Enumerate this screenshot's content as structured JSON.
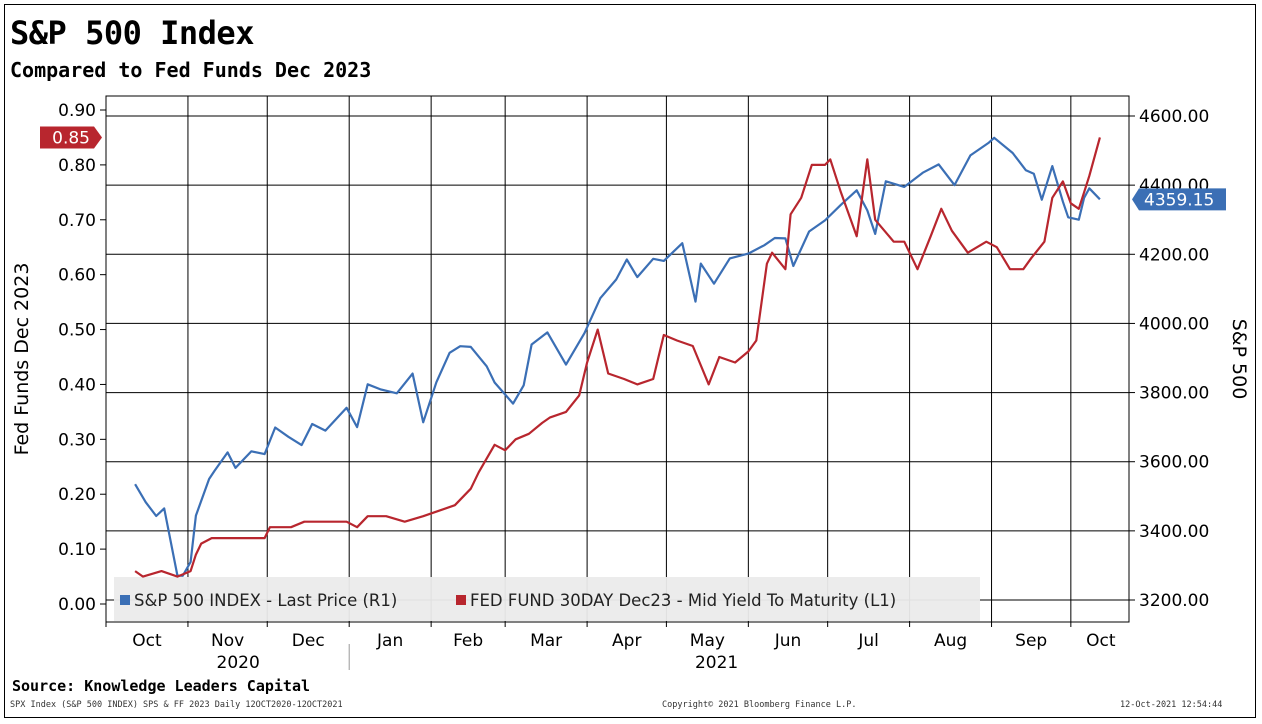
{
  "header": {
    "title": "S&P 500 Index",
    "subtitle": "Compared to Fed Funds Dec 2023"
  },
  "source": "Source: Knowledge Leaders Capital",
  "footer": {
    "left": "SPX Index (S&P 500 INDEX) SPS & FF 2023  Daily 12OCT2020-12OCT2021",
    "center": "Copyright© 2021 Bloomberg Finance L.P.",
    "right": "12-Oct-2021 12:54:44"
  },
  "colors": {
    "spx": "#3b6fb5",
    "ff": "#b8262e",
    "grid": "#000000"
  },
  "chart_data": {
    "type": "line",
    "xlabel": "",
    "left_axis": {
      "label": "Fed Funds Dec 2023",
      "range": [
        0.0,
        0.9
      ],
      "ticks": [
        0.0,
        0.1,
        0.2,
        0.3,
        0.4,
        0.5,
        0.6,
        0.7,
        0.8,
        0.9
      ],
      "tick_labels": [
        "0.00",
        "0.10",
        "0.20",
        "0.30",
        "0.40",
        "0.50",
        "0.60",
        "0.70",
        "0.80",
        "0.90"
      ]
    },
    "right_axis": {
      "label": "S&P 500",
      "range": [
        3200,
        4600
      ],
      "ticks": [
        3200,
        3400,
        3600,
        3800,
        4000,
        4200,
        4400,
        4600
      ],
      "tick_labels": [
        "3200.00",
        "3400.00",
        "3600.00",
        "3800.00",
        "4000.00",
        "4200.00",
        "4400.00",
        "4600.00"
      ]
    },
    "months": [
      {
        "label": "Oct",
        "date": "2020-10-01"
      },
      {
        "label": "Nov",
        "date": "2020-11-01"
      },
      {
        "label": "Dec",
        "date": "2020-12-01"
      },
      {
        "label": "Jan",
        "date": "2021-01-01"
      },
      {
        "label": "Feb",
        "date": "2021-02-01"
      },
      {
        "label": "Mar",
        "date": "2021-03-01"
      },
      {
        "label": "Apr",
        "date": "2021-04-01"
      },
      {
        "label": "May",
        "date": "2021-05-01"
      },
      {
        "label": "Jun",
        "date": "2021-06-01"
      },
      {
        "label": "Jul",
        "date": "2021-07-01"
      },
      {
        "label": "Aug",
        "date": "2021-08-01"
      },
      {
        "label": "Sep",
        "date": "2021-09-01"
      },
      {
        "label": "Oct",
        "date": "2021-10-01"
      }
    ],
    "years": [
      {
        "label": "2020",
        "date": "2020-11-20"
      },
      {
        "label": "2021",
        "date": "2021-05-20"
      }
    ],
    "x_range": [
      "2020-10-01",
      "2021-10-23"
    ],
    "legend_placement": "bottom-left",
    "grid": true,
    "series": [
      {
        "name": "S&P 500 INDEX - Last Price (R1)",
        "axis": "right",
        "last_value_label": "4359.15",
        "points": [
          [
            "2020-10-12",
            3535
          ],
          [
            "2020-10-16",
            3483
          ],
          [
            "2020-10-20",
            3443
          ],
          [
            "2020-10-23",
            3465
          ],
          [
            "2020-10-28",
            3271
          ],
          [
            "2020-10-30",
            3270
          ],
          [
            "2020-11-02",
            3310
          ],
          [
            "2020-11-04",
            3444
          ],
          [
            "2020-11-09",
            3550
          ],
          [
            "2020-11-11",
            3573
          ],
          [
            "2020-11-16",
            3627
          ],
          [
            "2020-11-19",
            3582
          ],
          [
            "2020-11-25",
            3630
          ],
          [
            "2020-11-30",
            3622
          ],
          [
            "2020-12-04",
            3699
          ],
          [
            "2020-12-09",
            3672
          ],
          [
            "2020-12-14",
            3648
          ],
          [
            "2020-12-18",
            3709
          ],
          [
            "2020-12-23",
            3690
          ],
          [
            "2020-12-31",
            3756
          ],
          [
            "2021-01-04",
            3700
          ],
          [
            "2021-01-08",
            3824
          ],
          [
            "2021-01-13",
            3809
          ],
          [
            "2021-01-19",
            3798
          ],
          [
            "2021-01-25",
            3855
          ],
          [
            "2021-01-29",
            3714
          ],
          [
            "2021-02-03",
            3830
          ],
          [
            "2021-02-08",
            3915
          ],
          [
            "2021-02-12",
            3934
          ],
          [
            "2021-02-16",
            3932
          ],
          [
            "2021-02-22",
            3876
          ],
          [
            "2021-02-25",
            3829
          ],
          [
            "2021-03-04",
            3768
          ],
          [
            "2021-03-08",
            3821
          ],
          [
            "2021-03-11",
            3939
          ],
          [
            "2021-03-17",
            3974
          ],
          [
            "2021-03-24",
            3881
          ],
          [
            "2021-03-31",
            3972
          ],
          [
            "2021-04-06",
            4073
          ],
          [
            "2021-04-12",
            4127
          ],
          [
            "2021-04-16",
            4185
          ],
          [
            "2021-04-20",
            4134
          ],
          [
            "2021-04-26",
            4187
          ],
          [
            "2021-04-30",
            4181
          ],
          [
            "2021-05-07",
            4232
          ],
          [
            "2021-05-12",
            4063
          ],
          [
            "2021-05-14",
            4173
          ],
          [
            "2021-05-19",
            4115
          ],
          [
            "2021-05-25",
            4188
          ],
          [
            "2021-06-01",
            4202
          ],
          [
            "2021-06-07",
            4226
          ],
          [
            "2021-06-11",
            4247
          ],
          [
            "2021-06-15",
            4246
          ],
          [
            "2021-06-18",
            4166
          ],
          [
            "2021-06-24",
            4266
          ],
          [
            "2021-06-30",
            4298
          ],
          [
            "2021-07-06",
            4343
          ],
          [
            "2021-07-12",
            4385
          ],
          [
            "2021-07-16",
            4327
          ],
          [
            "2021-07-19",
            4259
          ],
          [
            "2021-07-23",
            4411
          ],
          [
            "2021-07-30",
            4395
          ],
          [
            "2021-08-06",
            4436
          ],
          [
            "2021-08-12",
            4460
          ],
          [
            "2021-08-18",
            4400
          ],
          [
            "2021-08-24",
            4486
          ],
          [
            "2021-08-31",
            4523
          ],
          [
            "2021-09-02",
            4537
          ],
          [
            "2021-09-09",
            4493
          ],
          [
            "2021-09-14",
            4443
          ],
          [
            "2021-09-17",
            4433
          ],
          [
            "2021-09-20",
            4358
          ],
          [
            "2021-09-24",
            4455
          ],
          [
            "2021-09-28",
            4352
          ],
          [
            "2021-09-30",
            4307
          ],
          [
            "2021-10-04",
            4300
          ],
          [
            "2021-10-06",
            4363
          ],
          [
            "2021-10-08",
            4391
          ],
          [
            "2021-10-12",
            4359
          ]
        ]
      },
      {
        "name": "FED FUND 30DAY    Dec23 - Mid Yield To Maturity (L1)",
        "axis": "left",
        "last_value_label": "0.85",
        "points": [
          [
            "2020-10-12",
            0.06
          ],
          [
            "2020-10-15",
            0.05
          ],
          [
            "2020-10-22",
            0.06
          ],
          [
            "2020-10-28",
            0.05
          ],
          [
            "2020-11-02",
            0.06
          ],
          [
            "2020-11-04",
            0.09
          ],
          [
            "2020-11-06",
            0.11
          ],
          [
            "2020-11-10",
            0.12
          ],
          [
            "2020-11-18",
            0.12
          ],
          [
            "2020-11-24",
            0.12
          ],
          [
            "2020-11-30",
            0.12
          ],
          [
            "2020-12-02",
            0.14
          ],
          [
            "2020-12-10",
            0.14
          ],
          [
            "2020-12-15",
            0.15
          ],
          [
            "2020-12-24",
            0.15
          ],
          [
            "2020-12-31",
            0.15
          ],
          [
            "2021-01-04",
            0.14
          ],
          [
            "2021-01-08",
            0.16
          ],
          [
            "2021-01-15",
            0.16
          ],
          [
            "2021-01-22",
            0.15
          ],
          [
            "2021-01-29",
            0.16
          ],
          [
            "2021-02-04",
            0.17
          ],
          [
            "2021-02-10",
            0.18
          ],
          [
            "2021-02-16",
            0.21
          ],
          [
            "2021-02-19",
            0.24
          ],
          [
            "2021-02-25",
            0.29
          ],
          [
            "2021-03-01",
            0.28
          ],
          [
            "2021-03-05",
            0.3
          ],
          [
            "2021-03-10",
            0.31
          ],
          [
            "2021-03-15",
            0.33
          ],
          [
            "2021-03-18",
            0.34
          ],
          [
            "2021-03-24",
            0.35
          ],
          [
            "2021-03-29",
            0.38
          ],
          [
            "2021-04-01",
            0.44
          ],
          [
            "2021-04-05",
            0.5
          ],
          [
            "2021-04-09",
            0.42
          ],
          [
            "2021-04-15",
            0.41
          ],
          [
            "2021-04-20",
            0.4
          ],
          [
            "2021-04-26",
            0.41
          ],
          [
            "2021-04-30",
            0.49
          ],
          [
            "2021-05-05",
            0.48
          ],
          [
            "2021-05-11",
            0.47
          ],
          [
            "2021-05-17",
            0.4
          ],
          [
            "2021-05-21",
            0.45
          ],
          [
            "2021-05-27",
            0.44
          ],
          [
            "2021-06-01",
            0.46
          ],
          [
            "2021-06-04",
            0.48
          ],
          [
            "2021-06-08",
            0.62
          ],
          [
            "2021-06-10",
            0.64
          ],
          [
            "2021-06-15",
            0.61
          ],
          [
            "2021-06-17",
            0.71
          ],
          [
            "2021-06-21",
            0.74
          ],
          [
            "2021-06-25",
            0.8
          ],
          [
            "2021-06-30",
            0.8
          ],
          [
            "2021-07-02",
            0.81
          ],
          [
            "2021-07-06",
            0.75
          ],
          [
            "2021-07-12",
            0.67
          ],
          [
            "2021-07-16",
            0.81
          ],
          [
            "2021-07-19",
            0.7
          ],
          [
            "2021-07-26",
            0.66
          ],
          [
            "2021-07-30",
            0.66
          ],
          [
            "2021-08-04",
            0.61
          ],
          [
            "2021-08-09",
            0.67
          ],
          [
            "2021-08-13",
            0.72
          ],
          [
            "2021-08-17",
            0.68
          ],
          [
            "2021-08-23",
            0.64
          ],
          [
            "2021-08-30",
            0.66
          ],
          [
            "2021-09-03",
            0.65
          ],
          [
            "2021-09-08",
            0.61
          ],
          [
            "2021-09-13",
            0.61
          ],
          [
            "2021-09-16",
            0.63
          ],
          [
            "2021-09-21",
            0.66
          ],
          [
            "2021-09-24",
            0.74
          ],
          [
            "2021-09-28",
            0.77
          ],
          [
            "2021-10-01",
            0.73
          ],
          [
            "2021-10-04",
            0.72
          ],
          [
            "2021-10-06",
            0.75
          ],
          [
            "2021-10-08",
            0.78
          ],
          [
            "2021-10-12",
            0.85
          ]
        ]
      }
    ]
  }
}
